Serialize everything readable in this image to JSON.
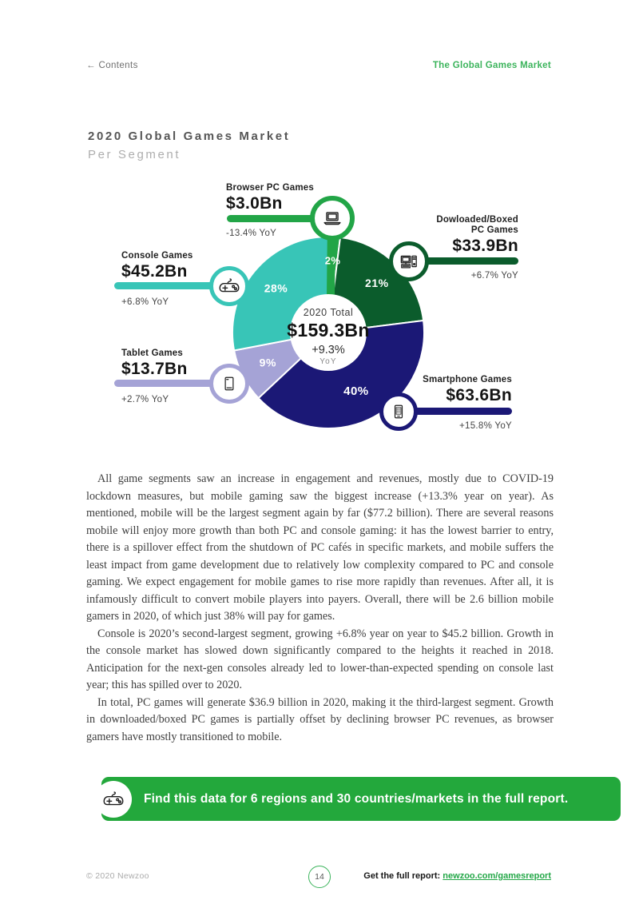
{
  "header": {
    "contents_link": "← Contents",
    "section_title": "The Global Games Market"
  },
  "title": {
    "main": "2020 Global Games Market",
    "sub": "Per Segment"
  },
  "chart_data": {
    "type": "pie",
    "title": "2020 Global Games Market Per Segment",
    "units": "USD billions",
    "direction": "clockwise",
    "start_angle_deg": 0,
    "center": {
      "label": "2020 Total",
      "value": "$159.3Bn",
      "growth": "+9.3%",
      "growth_unit": "YoY"
    },
    "segments": [
      {
        "name": "Browser PC Games",
        "value": "$3.0Bn",
        "value_bn": 3.0,
        "share_pct": 2,
        "share_label": "2%",
        "yoy": "-13.4% YoY",
        "color": "#22a547",
        "icon": "laptop-icon",
        "label_radius": 89,
        "label_size": 13
      },
      {
        "name": "Dowloaded/Boxed PC Games",
        "value": "$33.9Bn",
        "value_bn": 33.9,
        "share_pct": 21,
        "share_label": "21%",
        "yoy": "+6.7% YoY",
        "color": "#0b5c2c",
        "icon": "desktop-pc-icon",
        "label_radius": 86,
        "label_size": 14
      },
      {
        "name": "Smartphone Games",
        "value": "$63.6Bn",
        "value_bn": 63.6,
        "share_pct": 40,
        "share_label": "40%",
        "yoy": "+15.8% YoY",
        "color": "#1b1876",
        "icon": "smartphone-icon",
        "label_radius": 82,
        "label_size": 15
      },
      {
        "name": "Tablet Games",
        "value": "$13.7Bn",
        "value_bn": 13.7,
        "share_pct": 9,
        "share_label": "9%",
        "yoy": "+2.7% YoY",
        "color": "#a5a3d6",
        "icon": "tablet-icon",
        "label_radius": 85,
        "label_size": 14
      },
      {
        "name": "Console Games",
        "value": "$45.2Bn",
        "value_bn": 45.2,
        "share_pct": 28,
        "share_label": "28%",
        "yoy": "+6.8% YoY",
        "color": "#38c5b7",
        "icon": "gamepad-icon",
        "label_radius": 85,
        "label_size": 14
      }
    ]
  },
  "paragraphs": [
    "All game segments saw an increase in engagement and revenues, mostly due to COVID-19 lockdown measures, but mobile gaming saw the biggest increase (+13.3% year on year). As mentioned, mobile will be the largest segment again by far ($77.2 billion). There are several reasons mobile will enjoy more growth than both PC and console gaming: it has the lowest barrier to entry, there is a spillover effect from the shutdown of PC cafés in specific markets, and mobile suffers the least impact from game development due to relatively low complexity compared to PC and console gaming. We expect engagement for mobile games to rise more rapidly than revenues. After all, it is infamously difficult to convert mobile players into payers. Overall, there will be 2.6 billion mobile gamers in 2020, of which just 38% will pay for games.",
    "Console is 2020’s second-largest segment, growing +6.8% year on year to $45.2 billion. Growth in the console market has slowed down significantly compared to the heights it reached in 2018. Anticipation for the next-gen consoles already led to lower-than-expected spending on console last year; this has spilled over to 2020.",
    "In total, PC games will generate $36.9 billion in 2020, making it the third-largest segment. Growth in downloaded/boxed PC games is partially offset by declining browser PC revenues, as browser gamers have mostly transitioned to mobile."
  ],
  "banner": {
    "text": "Find this data for 6 regions and 30 countries/markets in the full report.",
    "icon": "gamepad-icon",
    "bg_color": "#23a83c"
  },
  "footer": {
    "copyright": "© 2020 Newzoo",
    "page_number": "14",
    "cta_label": "Get the full report:",
    "cta_link_text": "newzoo.com/gamesreport"
  }
}
